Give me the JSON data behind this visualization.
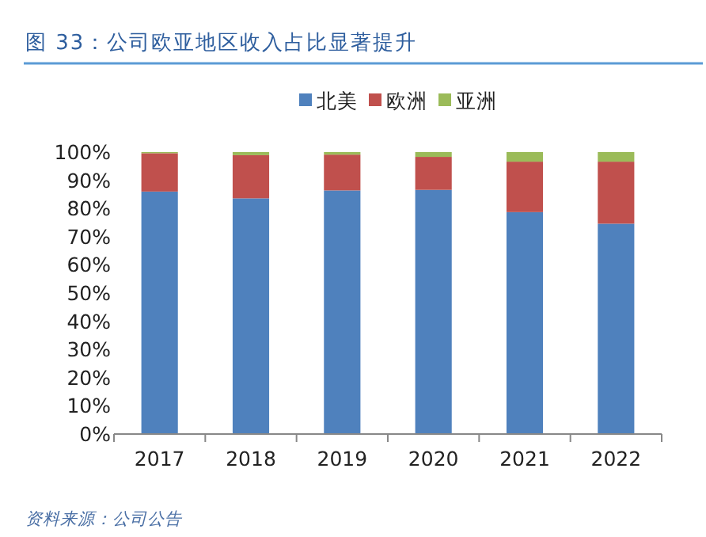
{
  "chart_data": {
    "type": "bar",
    "title": "图 33：公司欧亚地区收入占比显著提升",
    "categories": [
      "2017",
      "2018",
      "2019",
      "2020",
      "2021",
      "2022"
    ],
    "stacked": true,
    "series": [
      {
        "name": "北美",
        "color": "#4f81bd",
        "values": [
          86.0,
          83.6,
          86.4,
          86.6,
          78.7,
          74.6
        ]
      },
      {
        "name": "欧洲",
        "color": "#c0504d",
        "values": [
          13.6,
          15.3,
          12.7,
          11.7,
          17.9,
          22.0
        ]
      },
      {
        "name": "亚洲",
        "color": "#9bbb59",
        "values": [
          0.4,
          1.1,
          0.9,
          1.7,
          3.4,
          3.4
        ]
      }
    ],
    "ylim": [
      0,
      100
    ],
    "yticks": [
      {
        "value": 0,
        "label": "0%"
      },
      {
        "value": 10,
        "label": "10%"
      },
      {
        "value": 20,
        "label": "20%"
      },
      {
        "value": 30,
        "label": "30%"
      },
      {
        "value": 40,
        "label": "40%"
      },
      {
        "value": 50,
        "label": "50%"
      },
      {
        "value": 60,
        "label": "60%"
      },
      {
        "value": 70,
        "label": "70%"
      },
      {
        "value": 80,
        "label": "80%"
      },
      {
        "value": 90,
        "label": "90%"
      },
      {
        "value": 100,
        "label": "100%"
      }
    ],
    "legend": "top",
    "annotations": [
      "资料来源：公司公告"
    ]
  }
}
